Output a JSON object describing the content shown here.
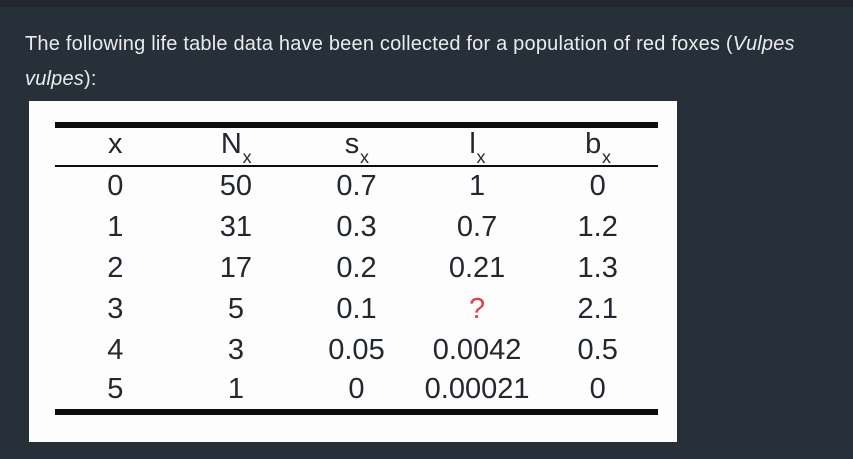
{
  "theme": {
    "bg": "#273039",
    "top_bar": "#23282e",
    "text": "#e9ebed",
    "panel_bg": "#fdfdfd",
    "table_ink": "#23272e",
    "rule": "#0d0d0d",
    "missing": "#e24049"
  },
  "question": {
    "line1_prefix": "The following life table data have been collected for a population of red foxes (",
    "line1_italic": "Vulpes",
    "line2_italic": "vulpes",
    "line2_suffix": "):"
  },
  "table": {
    "headers": [
      {
        "base": "x",
        "sub": ""
      },
      {
        "base": "N",
        "sub": "x"
      },
      {
        "base": "s",
        "sub": "x"
      },
      {
        "base": "l",
        "sub": "x"
      },
      {
        "base": "b",
        "sub": "x"
      }
    ],
    "rows": [
      [
        "0",
        "50",
        "0.7",
        "1",
        "0"
      ],
      [
        "1",
        "31",
        "0.3",
        "0.7",
        "1.2"
      ],
      [
        "2",
        "17",
        "0.2",
        "0.21",
        "1.3"
      ],
      [
        "3",
        "5",
        "0.1",
        "?",
        "2.1"
      ],
      [
        "4",
        "3",
        "0.05",
        "0.0042",
        "0.5"
      ],
      [
        "5",
        "1",
        "0",
        "0.00021",
        "0"
      ]
    ],
    "missing_cell": {
      "row": 3,
      "col": 3,
      "color": "#e24049"
    }
  }
}
